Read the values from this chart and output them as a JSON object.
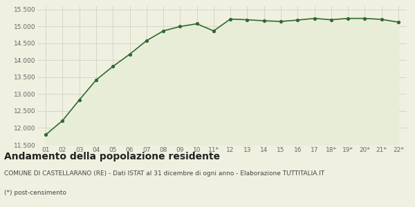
{
  "x_labels": [
    "01",
    "02",
    "03",
    "04",
    "05",
    "06",
    "07",
    "08",
    "09",
    "10",
    "11*",
    "12",
    "13",
    "14",
    "15",
    "16",
    "17",
    "18*",
    "19*",
    "20*",
    "21*",
    "22*"
  ],
  "values": [
    11800,
    12220,
    12830,
    13420,
    13820,
    14180,
    14580,
    14870,
    15000,
    15080,
    14870,
    15220,
    15200,
    15170,
    15150,
    15190,
    15240,
    15200,
    15240,
    15240,
    15210,
    15130
  ],
  "line_color": "#2d6a2d",
  "fill_color": "#e8edd8",
  "marker_color": "#2d6a2d",
  "bg_color": "#f0f0e0",
  "grid_color": "#ccccbb",
  "ylim": [
    11500,
    15600
  ],
  "yticks": [
    11500,
    12000,
    12500,
    13000,
    13500,
    14000,
    14500,
    15000,
    15500
  ],
  "title": "Andamento della popolazione residente",
  "subtitle": "COMUNE DI CASTELLARANO (RE) - Dati ISTAT al 31 dicembre di ogni anno - Elaborazione TUTTITALIA.IT",
  "footnote": "(*) post-censimento",
  "title_fontsize": 10,
  "subtitle_fontsize": 6.5,
  "footnote_fontsize": 6.5,
  "tick_fontsize": 6.5,
  "ytick_fontsize": 6.5
}
